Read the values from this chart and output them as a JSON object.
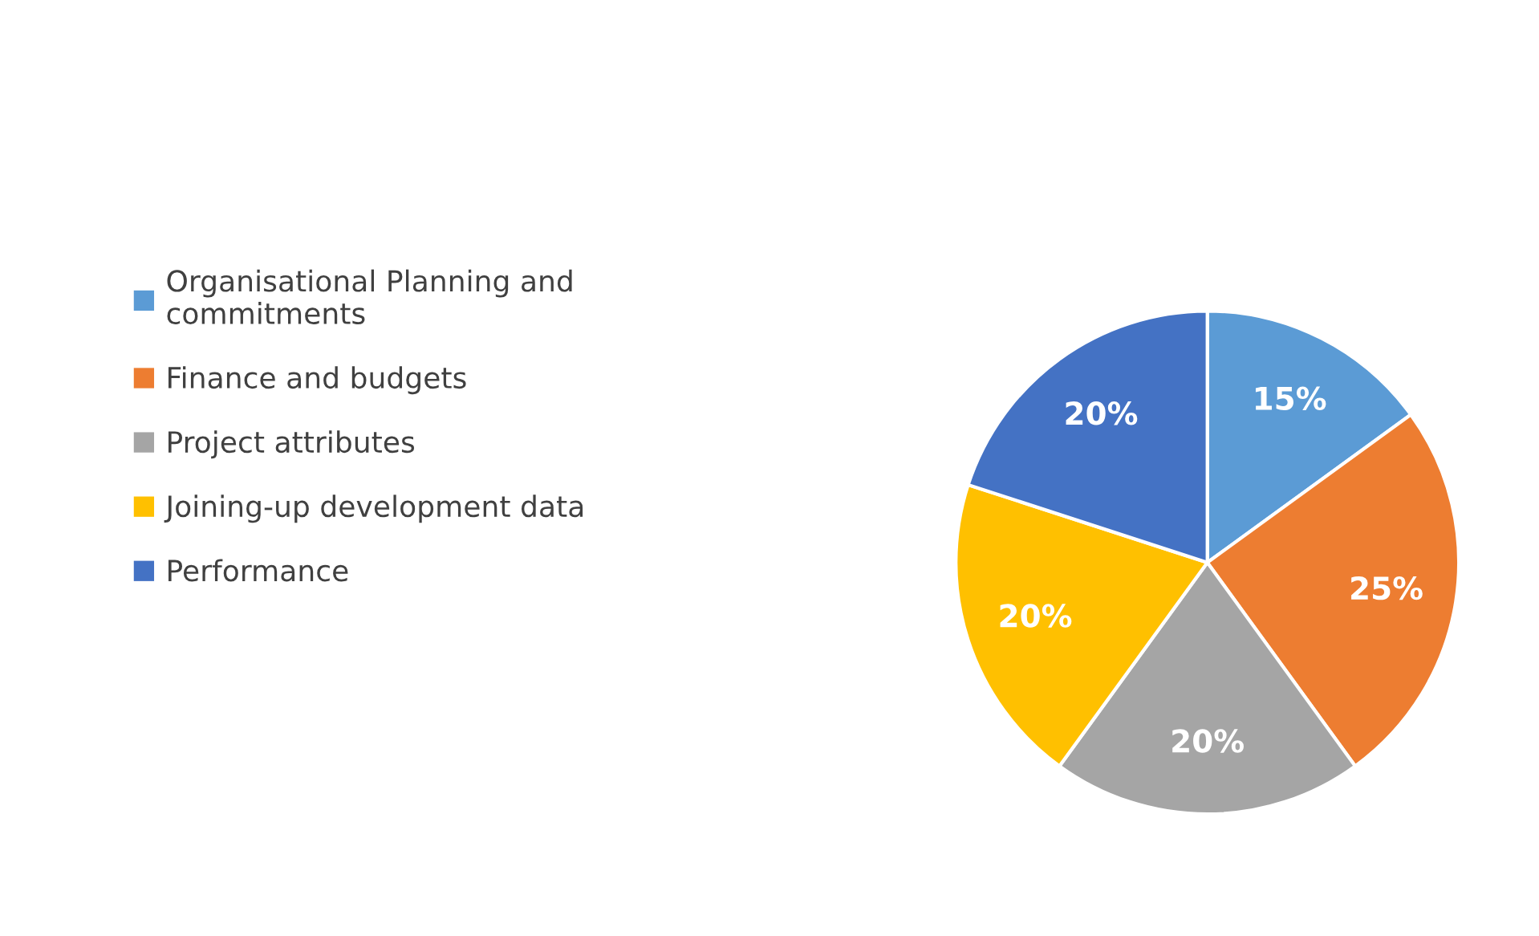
{
  "chart_data": {
    "type": "pie",
    "categories": [
      "Organisational Planning and commitments",
      "Finance and budgets",
      "Project attributes",
      "Joining-up development data",
      "Performance"
    ],
    "values": [
      15,
      25,
      20,
      20,
      20
    ],
    "colors": [
      "#5b9bd5",
      "#ed7d31",
      "#a5a5a5",
      "#ffc000",
      "#4472c4"
    ],
    "value_labels": [
      "15%",
      "25%",
      "20%",
      "20%",
      "20%"
    ],
    "legend": "left"
  }
}
